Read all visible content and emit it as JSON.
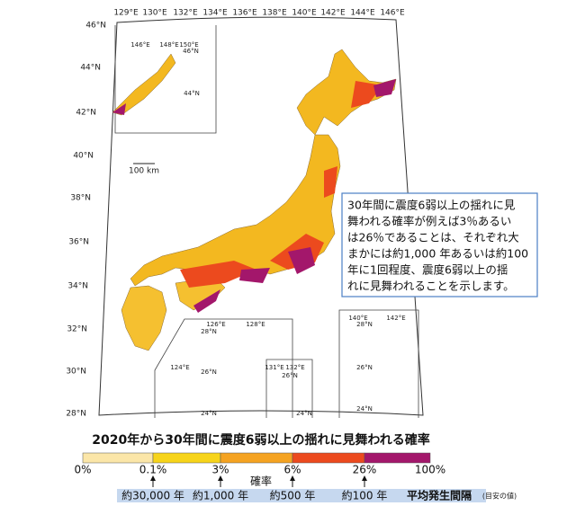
{
  "map": {
    "longitude_labels": [
      "129°E",
      "130°E",
      "132°E",
      "134°E",
      "136°E",
      "138°E",
      "140°E",
      "142°E",
      "144°E",
      "146°E"
    ],
    "latitude_labels": [
      "46°N",
      "44°N",
      "42°N",
      "40°N",
      "38°N",
      "36°N",
      "34°N",
      "32°N",
      "30°N",
      "28°N"
    ],
    "inset_labels": [
      "146°E",
      "148°E",
      "150°E",
      "46°N",
      "44°N",
      "126°E",
      "128°E",
      "28°N",
      "124°E",
      "26°N",
      "24°N",
      "131°E",
      "132°E",
      "26°N",
      "24°N",
      "140°E",
      "142°E",
      "28°N",
      "26°N",
      "24°N"
    ],
    "scale_label": "100 km"
  },
  "note": [
    "30年間に震度6弱以上の揺れに見",
    "舞われる確率が例えば3％あるい",
    "は26％であることは、それぞれ大",
    "まかには約1,000 年あるいは約100",
    "年に1回程度、震度6弱以上の揺",
    "れに見舞われることを示します。"
  ],
  "legend": {
    "title": "2020年から30年間に震度6弱以上の揺れに見舞われる確率",
    "ticks": [
      "0%",
      "0.1%",
      "3%",
      "6%",
      "26%",
      "100%"
    ],
    "colors": [
      "#fbe6a8",
      "#f7d41a",
      "#f5a321",
      "#ec4a1e",
      "#a3176b"
    ],
    "axis_label": "確率",
    "intervals": [
      "約30,000 年",
      "約1,000 年",
      "約500 年",
      "約100 年"
    ],
    "interval_label": "平均発生間隔",
    "interval_note": "(目安の値)"
  }
}
